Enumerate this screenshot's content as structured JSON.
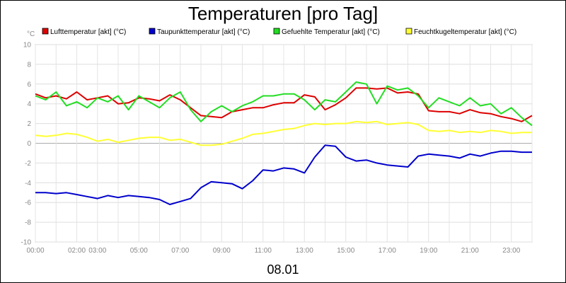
{
  "chart_data": {
    "type": "line",
    "title": "Temperaturen [pro Tag]",
    "date_label": "08.01",
    "y_unit": "°C",
    "ylim": [
      -10,
      10
    ],
    "yticks": [
      "10",
      "8",
      "6",
      "4",
      "2",
      "0",
      "-2",
      "-4",
      "-6",
      "-8",
      "-10"
    ],
    "xlim": [
      0,
      24
    ],
    "xticks": [
      {
        "label": "00:00",
        "h": 0
      },
      {
        "label": "02:00",
        "h": 2
      },
      {
        "label": "03:00",
        "h": 3
      },
      {
        "label": "05:00",
        "h": 5
      },
      {
        "label": "07:00",
        "h": 7
      },
      {
        "label": "09:00",
        "h": 9
      },
      {
        "label": "11:00",
        "h": 11
      },
      {
        "label": "13:00",
        "h": 13
      },
      {
        "label": "15:00",
        "h": 15
      },
      {
        "label": "17:00",
        "h": 17
      },
      {
        "label": "19:00",
        "h": 19
      },
      {
        "label": "21:00",
        "h": 21
      },
      {
        "label": "23:00",
        "h": 23
      }
    ],
    "grid": true,
    "legend_position": "top",
    "series": [
      {
        "name": "Lufttemperatur [akt] (°C)",
        "color": "#dd0000",
        "x": [
          0,
          0.5,
          1,
          1.5,
          2,
          2.5,
          3,
          3.5,
          4,
          4.5,
          5,
          5.5,
          6,
          6.5,
          7,
          7.5,
          8,
          8.5,
          9,
          9.5,
          10,
          10.5,
          11,
          11.5,
          12,
          12.5,
          13,
          13.5,
          14,
          14.5,
          15,
          15.5,
          16,
          16.5,
          17,
          17.5,
          18,
          18.5,
          19,
          19.5,
          20,
          20.5,
          21,
          21.5,
          22,
          22.5,
          23,
          23.5,
          24
        ],
        "y": [
          5.0,
          4.6,
          4.8,
          4.5,
          5.2,
          4.4,
          4.6,
          4.8,
          4.0,
          4.1,
          4.6,
          4.5,
          4.3,
          4.9,
          4.4,
          3.6,
          2.8,
          2.7,
          2.6,
          3.2,
          3.4,
          3.6,
          3.6,
          3.9,
          4.1,
          4.1,
          4.9,
          4.7,
          3.4,
          3.9,
          4.6,
          5.6,
          5.6,
          5.5,
          5.6,
          5.1,
          5.2,
          5.0,
          3.3,
          3.2,
          3.2,
          3.0,
          3.4,
          3.1,
          3.0,
          2.7,
          2.5,
          2.2,
          2.8
        ]
      },
      {
        "name": "Taupunkttemperatur [akt] (°C)",
        "color": "#0000cc",
        "x": [
          0,
          0.5,
          1,
          1.5,
          2,
          2.5,
          3,
          3.5,
          4,
          4.5,
          5,
          5.5,
          6,
          6.5,
          7,
          7.5,
          8,
          8.5,
          9,
          9.5,
          10,
          10.5,
          11,
          11.5,
          12,
          12.5,
          13,
          13.5,
          14,
          14.5,
          15,
          15.5,
          16,
          16.5,
          17,
          17.5,
          18,
          18.5,
          19,
          19.5,
          20,
          20.5,
          21,
          21.5,
          22,
          22.5,
          23,
          23.5,
          24
        ],
        "y": [
          -5.0,
          -5.0,
          -5.1,
          -5.0,
          -5.2,
          -5.4,
          -5.6,
          -5.3,
          -5.5,
          -5.3,
          -5.4,
          -5.5,
          -5.7,
          -6.2,
          -5.9,
          -5.6,
          -4.5,
          -3.9,
          -4.0,
          -4.1,
          -4.6,
          -3.8,
          -2.7,
          -2.8,
          -2.5,
          -2.6,
          -3.0,
          -1.4,
          -0.2,
          -0.3,
          -1.4,
          -1.8,
          -1.7,
          -2.0,
          -2.2,
          -2.3,
          -2.4,
          -1.3,
          -1.1,
          -1.2,
          -1.3,
          -1.5,
          -1.1,
          -1.3,
          -1.0,
          -0.8,
          -0.8,
          -0.9,
          -0.9
        ]
      },
      {
        "name": "Gefuehlte Temperatur [akt] (°C)",
        "color": "#22dd22",
        "x": [
          0,
          0.5,
          1,
          1.5,
          2,
          2.5,
          3,
          3.5,
          4,
          4.5,
          5,
          5.5,
          6,
          6.5,
          7,
          7.5,
          8,
          8.5,
          9,
          9.5,
          10,
          10.5,
          11,
          11.5,
          12,
          12.5,
          13,
          13.5,
          14,
          14.5,
          15,
          15.5,
          16,
          16.5,
          17,
          17.5,
          18,
          18.5,
          19,
          19.5,
          20,
          20.5,
          21,
          21.5,
          22,
          22.5,
          23,
          23.5,
          24
        ],
        "y": [
          4.8,
          4.4,
          5.2,
          3.8,
          4.2,
          3.6,
          4.6,
          4.2,
          4.8,
          3.4,
          4.8,
          4.2,
          3.6,
          4.6,
          5.2,
          3.4,
          2.2,
          3.2,
          3.8,
          3.2,
          3.8,
          4.2,
          4.8,
          4.8,
          5.0,
          5.0,
          4.4,
          3.4,
          4.4,
          4.2,
          5.2,
          6.2,
          6.0,
          4.0,
          5.8,
          5.4,
          5.6,
          4.8,
          3.6,
          4.6,
          4.2,
          3.8,
          4.6,
          3.8,
          4.0,
          3.0,
          3.6,
          2.6,
          1.8
        ]
      },
      {
        "name": "Feuchtkugeltemperatur [akt] (°C)",
        "color": "#ffff33",
        "x": [
          0,
          0.5,
          1,
          1.5,
          2,
          2.5,
          3,
          3.5,
          4,
          4.5,
          5,
          5.5,
          6,
          6.5,
          7,
          7.5,
          8,
          8.5,
          9,
          9.5,
          10,
          10.5,
          11,
          11.5,
          12,
          12.5,
          13,
          13.5,
          14,
          14.5,
          15,
          15.5,
          16,
          16.5,
          17,
          17.5,
          18,
          18.5,
          19,
          19.5,
          20,
          20.5,
          21,
          21.5,
          22,
          22.5,
          23,
          23.5,
          24
        ],
        "y": [
          0.8,
          0.7,
          0.8,
          1.0,
          0.9,
          0.6,
          0.2,
          0.4,
          0.1,
          0.3,
          0.5,
          0.6,
          0.6,
          0.3,
          0.4,
          0.1,
          -0.2,
          -0.2,
          -0.1,
          0.2,
          0.5,
          0.9,
          1.0,
          1.2,
          1.4,
          1.5,
          1.8,
          2.0,
          1.9,
          2.0,
          2.0,
          2.2,
          2.1,
          2.2,
          1.9,
          2.0,
          2.1,
          1.9,
          1.3,
          1.2,
          1.3,
          1.1,
          1.2,
          1.1,
          1.3,
          1.2,
          1.0,
          1.1,
          1.1
        ]
      }
    ]
  }
}
